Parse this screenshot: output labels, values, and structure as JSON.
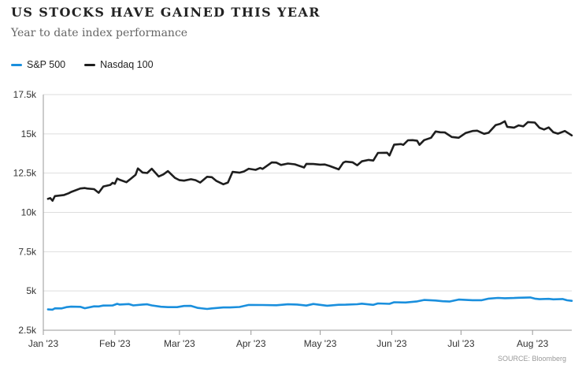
{
  "header": {
    "title": "US STOCKS HAVE GAINED THIS YEAR",
    "subtitle": "Year to date index performance"
  },
  "source": "SOURCE: Bloomberg",
  "chart_data": {
    "type": "line",
    "title": "US STOCKS HAVE GAINED THIS YEAR",
    "subtitle": "Year to date index performance",
    "xlabel": "",
    "ylabel": "",
    "x_type": "date",
    "xlim": [
      "2023-01-01",
      "2023-08-18"
    ],
    "ylim": [
      2500,
      17500
    ],
    "y_ticks": [
      {
        "value": 2500,
        "label": "2.5k"
      },
      {
        "value": 5000,
        "label": "5k"
      },
      {
        "value": 7500,
        "label": "7.5k"
      },
      {
        "value": 10000,
        "label": "10k"
      },
      {
        "value": 12500,
        "label": "12.5k"
      },
      {
        "value": 15000,
        "label": "15k"
      },
      {
        "value": 17500,
        "label": "17.5k"
      }
    ],
    "x_ticks": [
      {
        "value": "2023-01-01",
        "label": "Jan '23"
      },
      {
        "value": "2023-02-01",
        "label": "Feb '23"
      },
      {
        "value": "2023-03-01",
        "label": "Mar '23"
      },
      {
        "value": "2023-04-01",
        "label": "Apr '23"
      },
      {
        "value": "2023-05-01",
        "label": "May '23"
      },
      {
        "value": "2023-06-01",
        "label": "Jun '23"
      },
      {
        "value": "2023-07-01",
        "label": "Jul '23"
      },
      {
        "value": "2023-08-01",
        "label": "Aug '23"
      }
    ],
    "grid": true,
    "legend_position": "top-left",
    "series": [
      {
        "name": "S&P 500",
        "color": "#1a8fdd",
        "points": [
          [
            "2023-01-03",
            3824
          ],
          [
            "2023-01-05",
            3808
          ],
          [
            "2023-01-06",
            3895
          ],
          [
            "2023-01-09",
            3892
          ],
          [
            "2023-01-11",
            3970
          ],
          [
            "2023-01-13",
            3999
          ],
          [
            "2023-01-17",
            3990
          ],
          [
            "2023-01-19",
            3898
          ],
          [
            "2023-01-23",
            4019
          ],
          [
            "2023-01-25",
            4016
          ],
          [
            "2023-01-27",
            4070
          ],
          [
            "2023-01-31",
            4077
          ],
          [
            "2023-02-02",
            4180
          ],
          [
            "2023-02-03",
            4136
          ],
          [
            "2023-02-07",
            4164
          ],
          [
            "2023-02-09",
            4082
          ],
          [
            "2023-02-13",
            4137
          ],
          [
            "2023-02-15",
            4148
          ],
          [
            "2023-02-17",
            4079
          ],
          [
            "2023-02-21",
            3997
          ],
          [
            "2023-02-24",
            3970
          ],
          [
            "2023-02-28",
            3970
          ],
          [
            "2023-03-03",
            4045
          ],
          [
            "2023-03-06",
            4048
          ],
          [
            "2023-03-09",
            3919
          ],
          [
            "2023-03-13",
            3855
          ],
          [
            "2023-03-15",
            3891
          ],
          [
            "2023-03-17",
            3917
          ],
          [
            "2023-03-20",
            3952
          ],
          [
            "2023-03-23",
            3948
          ],
          [
            "2023-03-27",
            3978
          ],
          [
            "2023-03-31",
            4109
          ],
          [
            "2023-04-06",
            4105
          ],
          [
            "2023-04-12",
            4092
          ],
          [
            "2023-04-17",
            4152
          ],
          [
            "2023-04-21",
            4134
          ],
          [
            "2023-04-25",
            4072
          ],
          [
            "2023-04-28",
            4169
          ],
          [
            "2023-05-04",
            4061
          ],
          [
            "2023-05-09",
            4120
          ],
          [
            "2023-05-12",
            4124
          ],
          [
            "2023-05-17",
            4158
          ],
          [
            "2023-05-19",
            4192
          ],
          [
            "2023-05-24",
            4115
          ],
          [
            "2023-05-26",
            4205
          ],
          [
            "2023-05-31",
            4180
          ],
          [
            "2023-06-02",
            4282
          ],
          [
            "2023-06-07",
            4268
          ],
          [
            "2023-06-12",
            4338
          ],
          [
            "2023-06-15",
            4426
          ],
          [
            "2023-06-20",
            4389
          ],
          [
            "2023-06-23",
            4348
          ],
          [
            "2023-06-26",
            4328
          ],
          [
            "2023-06-30",
            4450
          ],
          [
            "2023-07-06",
            4411
          ],
          [
            "2023-07-10",
            4409
          ],
          [
            "2023-07-13",
            4510
          ],
          [
            "2023-07-17",
            4555
          ],
          [
            "2023-07-20",
            4535
          ],
          [
            "2023-07-24",
            4554
          ],
          [
            "2023-07-26",
            4566
          ],
          [
            "2023-07-31",
            4589
          ],
          [
            "2023-08-02",
            4513
          ],
          [
            "2023-08-04",
            4478
          ],
          [
            "2023-08-08",
            4499
          ],
          [
            "2023-08-10",
            4468
          ],
          [
            "2023-08-14",
            4489
          ],
          [
            "2023-08-16",
            4404
          ],
          [
            "2023-08-18",
            4370
          ]
        ]
      },
      {
        "name": "Nasdaq 100",
        "color": "#1e1e1e",
        "points": [
          [
            "2023-01-03",
            10862
          ],
          [
            "2023-01-04",
            10914
          ],
          [
            "2023-01-05",
            10741
          ],
          [
            "2023-01-06",
            11040
          ],
          [
            "2023-01-10",
            11108
          ],
          [
            "2023-01-12",
            11220
          ],
          [
            "2023-01-13",
            11300
          ],
          [
            "2023-01-17",
            11520
          ],
          [
            "2023-01-19",
            11550
          ],
          [
            "2023-01-20",
            11520
          ],
          [
            "2023-01-23",
            11480
          ],
          [
            "2023-01-25",
            11250
          ],
          [
            "2023-01-27",
            11650
          ],
          [
            "2023-01-30",
            11750
          ],
          [
            "2023-01-31",
            11880
          ],
          [
            "2023-02-01",
            11820
          ],
          [
            "2023-02-02",
            12150
          ],
          [
            "2023-02-03",
            12080
          ],
          [
            "2023-02-06",
            11920
          ],
          [
            "2023-02-08",
            12150
          ],
          [
            "2023-02-10",
            12400
          ],
          [
            "2023-02-11",
            12800
          ],
          [
            "2023-02-13",
            12540
          ],
          [
            "2023-02-15",
            12510
          ],
          [
            "2023-02-17",
            12780
          ],
          [
            "2023-02-20",
            12290
          ],
          [
            "2023-02-22",
            12420
          ],
          [
            "2023-02-24",
            12630
          ],
          [
            "2023-02-27",
            12200
          ],
          [
            "2023-03-01",
            12050
          ],
          [
            "2023-03-03",
            12020
          ],
          [
            "2023-03-06",
            12110
          ],
          [
            "2023-03-08",
            12050
          ],
          [
            "2023-03-10",
            11900
          ],
          [
            "2023-03-13",
            12270
          ],
          [
            "2023-03-15",
            12240
          ],
          [
            "2023-03-17",
            12000
          ],
          [
            "2023-03-20",
            11790
          ],
          [
            "2023-03-22",
            11900
          ],
          [
            "2023-03-24",
            12580
          ],
          [
            "2023-03-27",
            12530
          ],
          [
            "2023-03-29",
            12610
          ],
          [
            "2023-03-31",
            12780
          ],
          [
            "2023-04-03",
            12710
          ],
          [
            "2023-04-05",
            12830
          ],
          [
            "2023-04-06",
            12770
          ],
          [
            "2023-04-10",
            13180
          ],
          [
            "2023-04-12",
            13170
          ],
          [
            "2023-04-14",
            13020
          ],
          [
            "2023-04-17",
            13110
          ],
          [
            "2023-04-20",
            13060
          ],
          [
            "2023-04-24",
            12860
          ],
          [
            "2023-04-25",
            13090
          ],
          [
            "2023-04-28",
            13080
          ],
          [
            "2023-05-01",
            13040
          ],
          [
            "2023-05-03",
            13050
          ],
          [
            "2023-05-05",
            12960
          ],
          [
            "2023-05-09",
            12740
          ],
          [
            "2023-05-11",
            13170
          ],
          [
            "2023-05-12",
            13230
          ],
          [
            "2023-05-15",
            13190
          ],
          [
            "2023-05-17",
            13000
          ],
          [
            "2023-05-19",
            13250
          ],
          [
            "2023-05-22",
            13340
          ],
          [
            "2023-05-24",
            13300
          ],
          [
            "2023-05-26",
            13790
          ],
          [
            "2023-05-30",
            13800
          ],
          [
            "2023-05-31",
            13620
          ],
          [
            "2023-06-02",
            14310
          ],
          [
            "2023-06-05",
            14350
          ],
          [
            "2023-06-06",
            14300
          ],
          [
            "2023-06-08",
            14590
          ],
          [
            "2023-06-10",
            14600
          ],
          [
            "2023-06-12",
            14560
          ],
          [
            "2023-06-13",
            14300
          ],
          [
            "2023-06-15",
            14600
          ],
          [
            "2023-06-18",
            14750
          ],
          [
            "2023-06-20",
            15150
          ],
          [
            "2023-06-22",
            15100
          ],
          [
            "2023-06-24",
            15090
          ],
          [
            "2023-06-27",
            14800
          ],
          [
            "2023-06-30",
            14750
          ],
          [
            "2023-07-03",
            15050
          ],
          [
            "2023-07-06",
            15180
          ],
          [
            "2023-07-08",
            15200
          ],
          [
            "2023-07-11",
            15000
          ],
          [
            "2023-07-13",
            15070
          ],
          [
            "2023-07-16",
            15560
          ],
          [
            "2023-07-18",
            15640
          ],
          [
            "2023-07-20",
            15800
          ],
          [
            "2023-07-21",
            15450
          ],
          [
            "2023-07-24",
            15400
          ],
          [
            "2023-07-26",
            15540
          ],
          [
            "2023-07-28",
            15480
          ],
          [
            "2023-07-30",
            15750
          ],
          [
            "2023-08-02",
            15720
          ],
          [
            "2023-08-04",
            15390
          ],
          [
            "2023-08-06",
            15280
          ],
          [
            "2023-08-08",
            15410
          ],
          [
            "2023-08-10",
            15100
          ],
          [
            "2023-08-12",
            15010
          ],
          [
            "2023-08-15",
            15180
          ],
          [
            "2023-08-18",
            14900
          ]
        ]
      }
    ]
  }
}
